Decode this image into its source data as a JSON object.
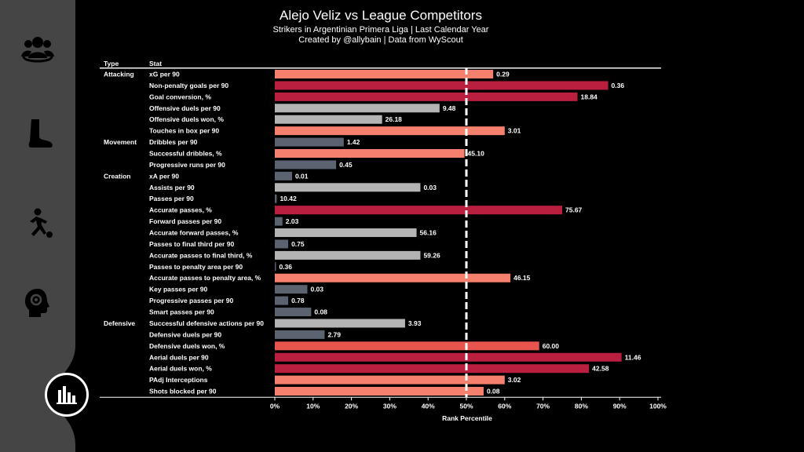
{
  "chart_data": {
    "type": "bar",
    "orientation": "horizontal",
    "title": "Alejo Veliz vs League Competitors",
    "subtitle_1": "Strikers in Argentinian Primera Liga | Last Calendar Year",
    "subtitle_2": "Created by @allybain | Data from WyScout",
    "col_type": "Type",
    "col_stat": "Stat",
    "xlabel": "Rank Percentile",
    "xlim": [
      0,
      100
    ],
    "x_ticks": [
      0,
      10,
      20,
      30,
      40,
      50,
      60,
      70,
      80,
      90,
      100
    ],
    "x_tick_labels": [
      "0%",
      "10%",
      "20%",
      "30%",
      "40%",
      "50%",
      "60%",
      "70%",
      "80%",
      "90%",
      "100%"
    ],
    "reference_line": 50,
    "colors": {
      "very_low": "#5b6270",
      "low": "#b4b4b4",
      "high": "#f5806d",
      "very_high": "#ba1f40",
      "above": "#e8544e"
    },
    "groups": [
      {
        "name": "Attacking",
        "stats": [
          {
            "label": "xG per 90",
            "percentile": 57,
            "value": "0.29",
            "color": "#f5806d"
          },
          {
            "label": "Non-penalty goals per 90",
            "percentile": 87,
            "value": "0.36",
            "color": "#ba1f40"
          },
          {
            "label": "Goal conversion, %",
            "percentile": 79,
            "value": "18.84",
            "color": "#ba1f40"
          },
          {
            "label": "Offensive duels per 90",
            "percentile": 43,
            "value": "9.48",
            "color": "#b4b4b4"
          },
          {
            "label": "Offensive duels won, %",
            "percentile": 28,
            "value": "26.18",
            "color": "#b4b4b4"
          },
          {
            "label": "Touches in box per 90",
            "percentile": 60,
            "value": "3.01",
            "color": "#f5806d"
          }
        ]
      },
      {
        "name": "Movement",
        "stats": [
          {
            "label": "Dribbles per 90",
            "percentile": 18,
            "value": "1.42",
            "color": "#5b6270"
          },
          {
            "label": "Successful dribbles, %",
            "percentile": 49.5,
            "value": "45.10",
            "color": "#f5806d"
          },
          {
            "label": "Progressive runs per 90",
            "percentile": 16,
            "value": "0.45",
            "color": "#5b6270"
          }
        ]
      },
      {
        "name": "Creation",
        "stats": [
          {
            "label": "xA per 90",
            "percentile": 4.5,
            "value": "0.01",
            "color": "#5b6270"
          },
          {
            "label": "Assists per 90",
            "percentile": 38,
            "value": "0.03",
            "color": "#b4b4b4"
          },
          {
            "label": "Passes per 90",
            "percentile": 0.5,
            "value": "10.42",
            "color": "#5b6270"
          },
          {
            "label": "Accurate passes, %",
            "percentile": 75,
            "value": "75.67",
            "color": "#ba1f40"
          },
          {
            "label": "Forward passes per 90",
            "percentile": 2,
            "value": "2.03",
            "color": "#5b6270"
          },
          {
            "label": "Accurate forward passes, %",
            "percentile": 37,
            "value": "56.16",
            "color": "#b4b4b4"
          },
          {
            "label": "Passes to final third per 90",
            "percentile": 3.5,
            "value": "0.75",
            "color": "#5b6270"
          },
          {
            "label": "Accurate passes to final third, %",
            "percentile": 38,
            "value": "59.26",
            "color": "#b4b4b4"
          },
          {
            "label": "Passes to penalty area per 90",
            "percentile": 0.3,
            "value": "0.36",
            "color": "#5b6270"
          },
          {
            "label": "Accurate passes to penalty area, %",
            "percentile": 61.5,
            "value": "46.15",
            "color": "#f5806d"
          },
          {
            "label": "Key passes per 90",
            "percentile": 8.5,
            "value": "0.03",
            "color": "#5b6270"
          },
          {
            "label": "Progressive passes per 90",
            "percentile": 3.5,
            "value": "0.78",
            "color": "#5b6270"
          },
          {
            "label": "Smart passes per 90",
            "percentile": 9.5,
            "value": "0.08",
            "color": "#5b6270"
          }
        ]
      },
      {
        "name": "Defensive",
        "stats": [
          {
            "label": "Successful defensive actions per 90",
            "percentile": 34,
            "value": "3.93",
            "color": "#b4b4b4"
          },
          {
            "label": "Defensive duels per 90",
            "percentile": 13,
            "value": "2.79",
            "color": "#5b6270"
          },
          {
            "label": "Defensive duels won, %",
            "percentile": 69,
            "value": "60.00",
            "color": "#e8544e"
          },
          {
            "label": "Aerial duels per 90",
            "percentile": 90.5,
            "value": "11.46",
            "color": "#ba1f40"
          },
          {
            "label": "Aerial duels won, %",
            "percentile": 82,
            "value": "42.58",
            "color": "#ba1f40"
          },
          {
            "label": "PAdj Interceptions",
            "percentile": 60,
            "value": "3.02",
            "color": "#f5806d"
          },
          {
            "label": "Shots blocked per 90",
            "percentile": 54.5,
            "value": "0.08",
            "color": "#f5806d"
          }
        ]
      }
    ]
  },
  "sidebar": {
    "icons": [
      "team-icon",
      "foot-icon",
      "player-kick-icon",
      "brain-head-icon"
    ],
    "logo": "bar-chart-logo-icon"
  }
}
